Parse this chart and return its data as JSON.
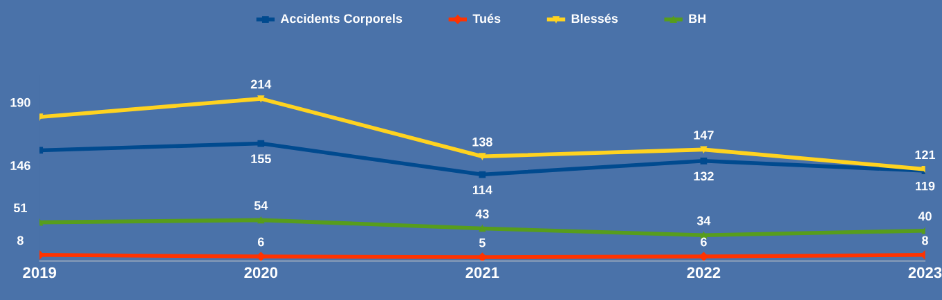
{
  "chart_data": {
    "type": "line",
    "categories": [
      "2019",
      "2020",
      "2021",
      "2022",
      "2023"
    ],
    "series": [
      {
        "name": "Accidents Corporels",
        "color": "#004a8f",
        "marker": "square",
        "values": [
          146,
          155,
          114,
          132,
          119
        ]
      },
      {
        "name": "Tués",
        "color": "#ff3300",
        "marker": "diamond",
        "values": [
          8,
          6,
          5,
          6,
          8
        ]
      },
      {
        "name": "Blessés",
        "color": "#ffd320",
        "marker": "triangle",
        "values": [
          190,
          214,
          138,
          147,
          121
        ]
      },
      {
        "name": "BH",
        "color": "#579d1c",
        "marker": "triangle",
        "values": [
          51,
          54,
          43,
          34,
          40
        ]
      }
    ],
    "tick_labels": "x",
    "data_labels": true,
    "legend": "top",
    "grid": false,
    "line_style": "solid"
  }
}
